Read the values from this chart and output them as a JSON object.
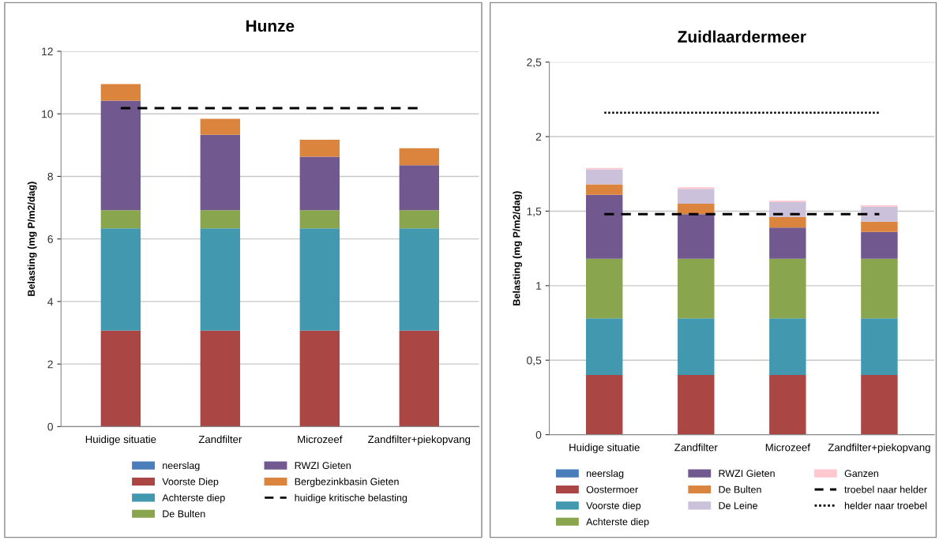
{
  "chart_data": [
    {
      "type": "bar",
      "title": "Hunze",
      "ylabel": "Belasting (mg P/m2/dag)",
      "stacked": true,
      "grid": "y",
      "legend": "bottom",
      "categories": [
        "Huidige situatie",
        "Zandfilter",
        "Microzeef",
        "Zandfilter+piekopvang"
      ],
      "ylim": [
        0,
        12
      ],
      "yticks": [
        0,
        2,
        4,
        6,
        8,
        10,
        12
      ],
      "series": [
        {
          "name": "neerslag",
          "color": "#4a7ebb",
          "values": [
            0,
            0,
            0,
            0
          ]
        },
        {
          "name": "Voorste Diep",
          "color": "#aa4643",
          "values": [
            3.07,
            3.07,
            3.07,
            3.07
          ]
        },
        {
          "name": "Achterste diep",
          "color": "#4198af",
          "values": [
            3.27,
            3.27,
            3.27,
            3.27
          ]
        },
        {
          "name": "De Bulten",
          "color": "#89a54e",
          "values": [
            0.58,
            0.58,
            0.58,
            0.58
          ]
        },
        {
          "name": "RWZI Gieten",
          "color": "#71588f",
          "values": [
            3.5,
            2.41,
            1.71,
            1.44
          ]
        },
        {
          "name": "Bergbezinkbasin Gieten",
          "color": "#db843d",
          "values": [
            0.53,
            0.51,
            0.54,
            0.54
          ]
        }
      ],
      "ref_lines": [
        {
          "axis": "y",
          "value": 10.18,
          "label": "huidige kritische belasting",
          "color": "#000000",
          "line_style": "dashed"
        }
      ]
    },
    {
      "type": "bar",
      "title": "Zuidlaardermeer",
      "ylabel": "Belasting (mg P/m2/dag)",
      "stacked": true,
      "grid": "y",
      "legend": "bottom",
      "categories": [
        "Huidige situatie",
        "Zandfilter",
        "Microzeef",
        "Zandfilter+piekopvang"
      ],
      "ylim": [
        0,
        2.5
      ],
      "yticks": [
        0,
        {
          "value": 0.5,
          "label": "0,5"
        },
        1,
        {
          "value": 1.5,
          "label": "1,5"
        },
        2,
        {
          "value": 2.5,
          "label": "2,5"
        }
      ],
      "series": [
        {
          "name": "neerslag",
          "color": "#4a7ebb",
          "values": [
            0,
            0,
            0,
            0
          ]
        },
        {
          "name": "Oostermoer",
          "color": "#aa4643",
          "values": [
            0.4,
            0.4,
            0.4,
            0.4
          ]
        },
        {
          "name": "Voorste diep",
          "color": "#4198af",
          "values": [
            0.38,
            0.38,
            0.38,
            0.38
          ]
        },
        {
          "name": "Achterste diep",
          "color": "#89a54e",
          "values": [
            0.4,
            0.4,
            0.4,
            0.4
          ]
        },
        {
          "name": "RWZI Gieten",
          "color": "#71588f",
          "values": [
            0.43,
            0.3,
            0.21,
            0.18
          ]
        },
        {
          "name": "De Bulten",
          "color": "#db843d",
          "values": [
            0.07,
            0.07,
            0.07,
            0.07
          ]
        },
        {
          "name": "De Leine",
          "color": "#ccc1da",
          "values": [
            0.1,
            0.1,
            0.1,
            0.1
          ]
        },
        {
          "name": "Ganzen",
          "color": "#ffc7ce",
          "values": [
            0.01,
            0.01,
            0.01,
            0.01
          ]
        }
      ],
      "ref_lines": [
        {
          "axis": "y",
          "value": 1.48,
          "label": "troebel naar helder",
          "color": "#000000",
          "line_style": "dashed"
        },
        {
          "axis": "y",
          "value": 2.16,
          "label": "helder naar troebel",
          "color": "#000000",
          "line_style": "dotted"
        }
      ]
    }
  ]
}
